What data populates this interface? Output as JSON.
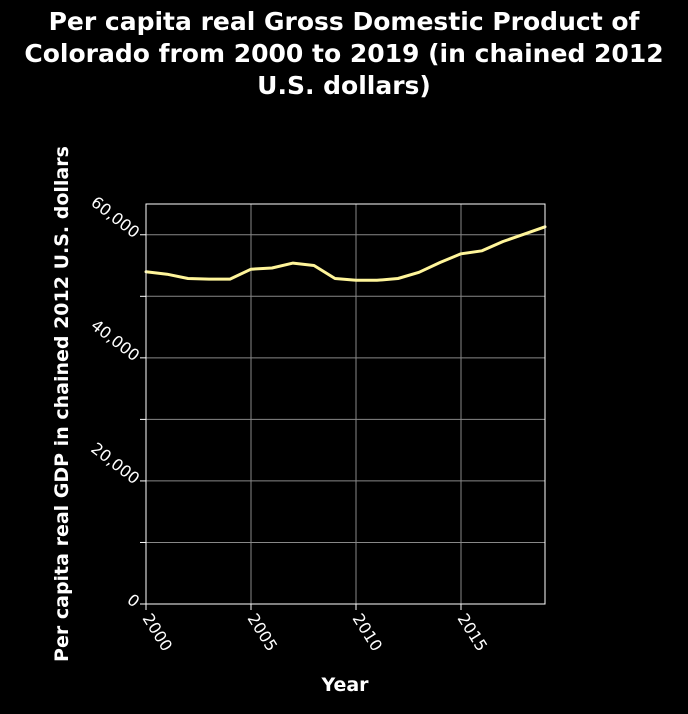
{
  "chart_data": {
    "type": "line",
    "title_lines": [
      "Per capita real Gross Domestic Product of",
      "Colorado from 2000 to 2019 (in chained 2012",
      "U.S. dollars)"
    ],
    "xlabel": "Year",
    "ylabel": "Per capita real GDP in chained 2012 U.S. dollars",
    "xlim": [
      2000,
      2019
    ],
    "ylim": [
      0,
      65000
    ],
    "x_ticks": [
      2000,
      2005,
      2010,
      2015
    ],
    "x_tick_labels": [
      "2000",
      "2005",
      "2010",
      "2015"
    ],
    "y_ticks": [
      0,
      20000,
      40000,
      60000
    ],
    "y_tick_labels": [
      "0",
      "20,000",
      "40,000",
      "60,000"
    ],
    "y_minor_ticks": [
      10000,
      30000,
      50000
    ],
    "grid": true,
    "series": [
      {
        "x": [
          2000,
          2001,
          2002,
          2003,
          2004,
          2005,
          2006,
          2007,
          2008,
          2009,
          2010,
          2011,
          2012,
          2013,
          2014,
          2015,
          2016,
          2017,
          2018,
          2019
        ],
        "values": [
          54000,
          53600,
          52900,
          52800,
          52800,
          54400,
          54600,
          55400,
          55000,
          52900,
          52600,
          52600,
          52900,
          53900,
          55500,
          56900,
          57400,
          58900,
          60100,
          61300
        ]
      }
    ],
    "colors": {
      "background": "#000000",
      "text": "#ffffff",
      "grid": "#888888",
      "line": "#fff59a"
    }
  }
}
